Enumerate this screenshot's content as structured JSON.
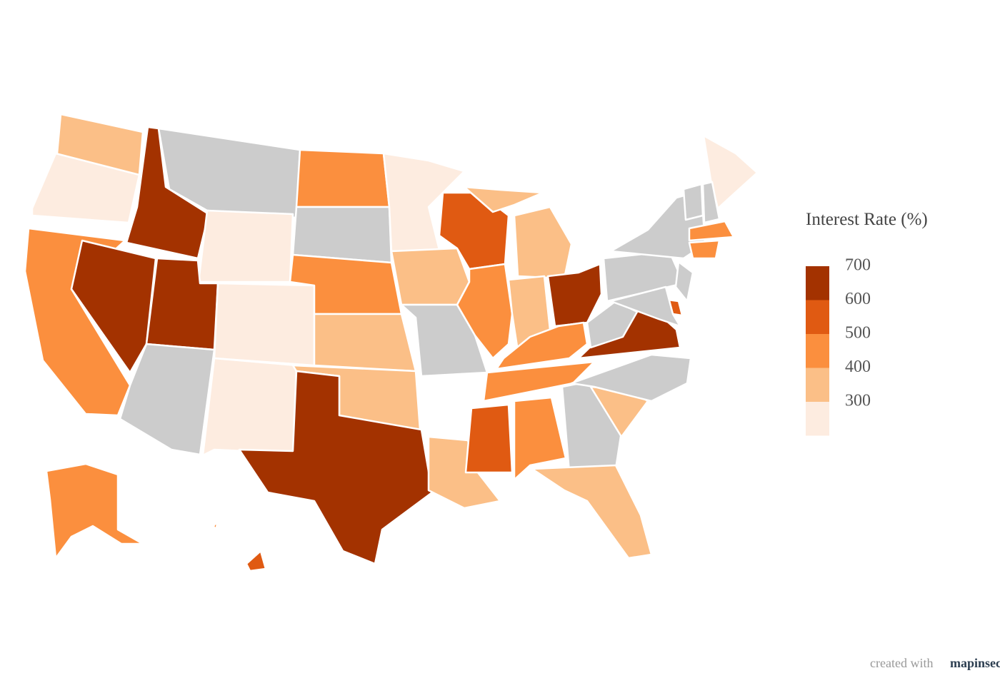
{
  "chart_data": {
    "type": "choropleth",
    "legend": {
      "title": "Interest Rate (%)",
      "ticks": [
        700,
        600,
        500,
        400,
        300
      ],
      "colors": [
        "#a33200",
        "#e05a12",
        "#fb8f3e",
        "#fbbf87",
        "#fdece0"
      ]
    },
    "null_color": "#cccccc",
    "values": [
      350,
      250,
      450,
      650,
      650,
      null,
      250,
      650,
      250,
      null,
      250,
      450,
      null,
      450,
      350,
      350,
      450,
      650,
      250,
      350,
      null,
      350,
      550,
      450,
      350,
      350,
      350,
      650,
      450,
      450,
      550,
      450,
      null,
      350,
      350,
      null,
      650,
      null,
      null,
      null,
      550,
      550,
      null,
      null,
      250,
      null,
      null,
      450,
      450,
      450
    ],
    "credit": "created with",
    "brand": "mapinseconds"
  }
}
